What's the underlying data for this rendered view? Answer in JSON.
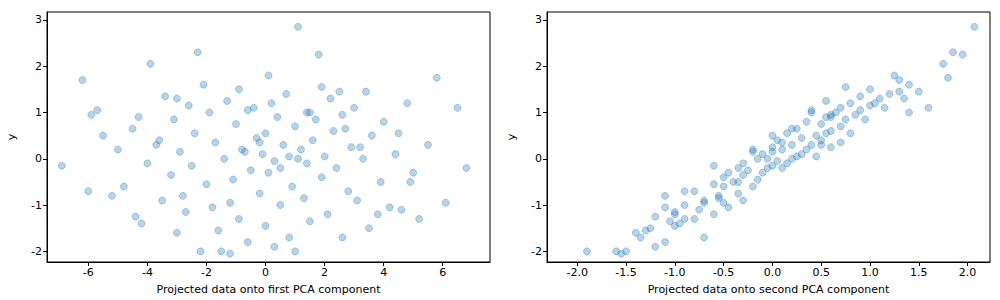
{
  "chart_data": [
    {
      "type": "scatter",
      "x_label": "Projected data onto first PCA component",
      "y_label": "y",
      "color": "#1f77b4",
      "grid": false,
      "xlim": [
        -7.4,
        7.6
      ],
      "ylim": [
        -2.23,
        3.17
      ],
      "xticks": [
        -6,
        -4,
        -2,
        0,
        2,
        4,
        6
      ],
      "yticks": [
        -2,
        -1,
        0,
        1,
        2,
        3
      ],
      "x": [
        1.1,
        -2.3,
        1.8,
        -3.9,
        5.8,
        -6.2,
        6.5,
        -6.9,
        6.8,
        -6.0,
        6.1,
        -5.9,
        -5.7,
        -5.2,
        4.2,
        5.2,
        -1.5,
        1.0,
        -2.2,
        -1.2,
        0.3,
        -0.6,
        2.6,
        -3.0,
        3.5,
        0.8,
        -4.2,
        1.5,
        -0.9,
        2.1,
        -2.7,
        4.6,
        -1.8,
        0.5,
        3.1,
        -3.5,
        1.3,
        -0.2,
        2.8,
        -4.8,
        0.9,
        -2.0,
        3.9,
        -1.1,
        1.9,
        -3.2,
        0.1,
        5.0,
        -0.5,
        2.4,
        -2.5,
        1.4,
        -4.0,
        0.3,
        3.3,
        -1.4,
        2.0,
        -0.1,
        4.4,
        -2.9,
        1.2,
        -0.8,
        2.9,
        -3.7,
        0.6,
        -1.7,
        1.6,
        -0.3,
        3.6,
        -2.4,
        0.0,
        2.3,
        -4.5,
        1.0,
        -1.0,
        4.0,
        -3.1,
        0.4,
        2.6,
        -1.9,
        1.5,
        -0.6,
        3.0,
        -2.6,
        0.2,
        4.8,
        -1.3,
        2.2,
        -3.4,
        0.7,
        3.4,
        -0.9,
        1.9,
        -2.1,
        0.1,
        -3.0,
        2.5,
        -0.4,
        1.7,
        -5.0,
        5.5,
        -5.5,
        4.9,
        -4.4,
        3.8,
        -1.6,
        0.0,
        1.1,
        -0.7,
        0.8,
        -2.8,
        2.7,
        -1.2,
        0.5,
        -3.6,
        3.2,
        -4.3,
        4.5,
        -0.2,
        1.4
      ],
      "y": [
        2.85,
        2.3,
        2.25,
        2.05,
        1.75,
        1.7,
        1.1,
        -0.15,
        -0.2,
        -0.7,
        -0.95,
        0.95,
        1.05,
        -0.8,
        -1.05,
        -1.3,
        -2.0,
        -2.0,
        -2.0,
        -2.05,
        -1.9,
        -1.8,
        -1.7,
        -1.6,
        -1.5,
        -1.7,
        -1.4,
        -1.35,
        -1.3,
        -1.2,
        -1.15,
        -1.1,
        -1.05,
        -1.0,
        -0.9,
        -0.9,
        -0.85,
        -0.75,
        -0.7,
        -0.6,
        -0.6,
        -0.55,
        -0.5,
        -0.45,
        -0.4,
        -0.35,
        -0.3,
        -0.3,
        -0.25,
        -0.2,
        -0.15,
        -0.1,
        -0.1,
        -0.05,
        0.0,
        0.0,
        0.05,
        0.1,
        0.1,
        0.15,
        0.2,
        0.2,
        0.25,
        0.3,
        0.3,
        0.35,
        0.4,
        0.45,
        0.5,
        0.55,
        0.55,
        0.6,
        0.65,
        0.7,
        0.75,
        0.8,
        0.85,
        0.9,
        0.95,
        1.0,
        1.0,
        1.05,
        1.1,
        1.15,
        1.2,
        1.2,
        1.25,
        1.3,
        1.35,
        1.4,
        1.45,
        1.5,
        1.55,
        1.6,
        1.8,
        1.3,
        1.45,
        1.1,
        0.85,
        0.2,
        0.3,
        0.5,
        -0.5,
        -1.25,
        -1.2,
        -1.55,
        -1.45,
        0.0,
        0.15,
        0.05,
        -0.8,
        0.65,
        -0.95,
        -0.2,
        0.4,
        0.25,
        0.9,
        0.55,
        0.35,
        1.0
      ]
    },
    {
      "type": "scatter",
      "x_label": "Projected data onto second PCA component",
      "y_label": "y",
      "color": "#1f77b4",
      "grid": false,
      "xlim": [
        -2.31,
        2.23
      ],
      "ylim": [
        -2.23,
        3.17
      ],
      "xticks": [
        {
          "value": -2,
          "label": "-2.0"
        },
        -1.5,
        {
          "value": -1,
          "label": "-1.0"
        },
        -0.5,
        {
          "value": 0,
          "label": "0.0"
        },
        0.5,
        {
          "value": 1,
          "label": "1.0"
        },
        1.5,
        {
          "value": 2,
          "label": "2.0"
        }
      ],
      "yticks": [
        -2,
        -1,
        0,
        1,
        2,
        3
      ],
      "x": [
        2.07,
        1.85,
        1.95,
        1.75,
        1.8,
        1.3,
        1.6,
        -0.6,
        0.1,
        -0.9,
        -0.5,
        0.6,
        0.4,
        -1.1,
        -1.1,
        -0.9,
        -1.6,
        -1.9,
        -1.5,
        -1.55,
        -1.2,
        -1.1,
        -1.35,
        -1.4,
        -1.25,
        -0.7,
        -0.95,
        -1.05,
        -0.8,
        -0.6,
        -1.0,
        -0.75,
        -0.45,
        -0.9,
        -0.3,
        -0.7,
        -0.55,
        -0.35,
        -0.8,
        -0.5,
        -0.2,
        -0.6,
        -0.4,
        -0.15,
        -0.5,
        -0.3,
        -0.45,
        -0.1,
        -0.25,
        -0.05,
        0.0,
        -0.3,
        0.15,
        0.05,
        -0.15,
        0.2,
        0.25,
        -0.1,
        0.3,
        -0.2,
        0.1,
        0.35,
        0.0,
        0.4,
        0.2,
        0.1,
        0.5,
        0.3,
        0.45,
        0.55,
        0.15,
        0.6,
        0.25,
        0.7,
        0.5,
        0.35,
        0.75,
        0.6,
        0.85,
        0.65,
        0.4,
        0.9,
        0.7,
        1.0,
        0.8,
        1.05,
        0.55,
        1.1,
        0.9,
        1.2,
        1.3,
        1.0,
        0.75,
        1.4,
        1.25,
        1.35,
        1.5,
        1.15,
        0.95,
        -0.2,
        0.5,
        0.0,
        -0.35,
        -1.2,
        -1.0,
        -1.3,
        -1.0,
        -0.05,
        0.0,
        0.45,
        -0.55,
        0.2,
        -0.7,
        -0.35,
        0.05,
        0.6,
        0.55,
        0.8,
        0.7,
        1.4
      ],
      "y": [
        2.85,
        2.3,
        2.25,
        2.05,
        1.75,
        1.7,
        1.1,
        -0.15,
        -0.2,
        -0.7,
        -0.95,
        0.95,
        1.05,
        -0.8,
        -1.05,
        -1.3,
        -2.0,
        -2.0,
        -2.0,
        -2.05,
        -1.9,
        -1.8,
        -1.7,
        -1.6,
        -1.5,
        -1.7,
        -1.4,
        -1.35,
        -1.3,
        -1.2,
        -1.15,
        -1.1,
        -1.05,
        -1.0,
        -0.9,
        -0.9,
        -0.85,
        -0.75,
        -0.7,
        -0.6,
        -0.6,
        -0.55,
        -0.5,
        -0.45,
        -0.4,
        -0.35,
        -0.3,
        -0.3,
        -0.25,
        -0.2,
        -0.15,
        -0.1,
        -0.1,
        -0.05,
        0.0,
        0.0,
        0.05,
        0.1,
        0.1,
        0.15,
        0.2,
        0.2,
        0.25,
        0.3,
        0.3,
        0.35,
        0.4,
        0.45,
        0.5,
        0.55,
        0.55,
        0.6,
        0.65,
        0.7,
        0.75,
        0.8,
        0.85,
        0.9,
        0.95,
        1.0,
        1.0,
        1.05,
        1.1,
        1.15,
        1.2,
        1.2,
        1.25,
        1.3,
        1.35,
        1.4,
        1.45,
        1.5,
        1.55,
        1.6,
        1.8,
        1.3,
        1.45,
        1.1,
        0.85,
        0.2,
        0.3,
        0.5,
        -0.5,
        -1.25,
        -1.2,
        -1.55,
        -1.45,
        0.0,
        0.15,
        0.05,
        -0.8,
        0.65,
        -0.95,
        -0.2,
        0.4,
        0.25,
        0.9,
        0.55,
        0.35,
        1.0
      ]
    }
  ]
}
